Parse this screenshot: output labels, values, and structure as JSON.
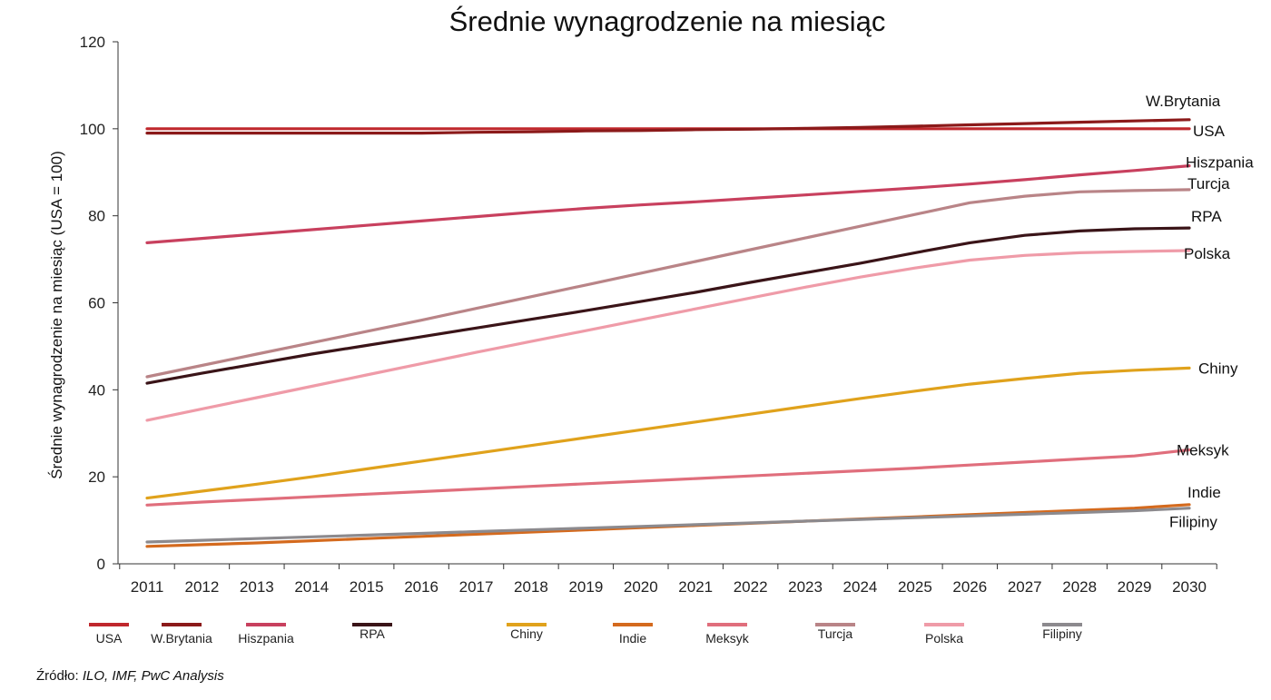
{
  "chart_data": {
    "type": "line",
    "title": "Średnie wynagrodzenie na miesiąc",
    "xlabel": "",
    "ylabel": "Średnie wynagrodzenie na miesiąc (USA = 100)",
    "x": [
      "2011",
      "2012",
      "2013",
      "2014",
      "2015",
      "2016",
      "2017",
      "2018",
      "2019",
      "2020",
      "2021",
      "2022",
      "2023",
      "2024",
      "2025",
      "2026",
      "2027",
      "2028",
      "2029",
      "2030"
    ],
    "ylim": [
      0,
      120
    ],
    "yticks": [
      0,
      20,
      40,
      60,
      80,
      100,
      120
    ],
    "grid": false,
    "legend_position": "bottom",
    "series": [
      {
        "name": "USA",
        "color": "#c0282d",
        "values": [
          100,
          100,
          100,
          100,
          100,
          100,
          100,
          100,
          100,
          100,
          100,
          100,
          100,
          100,
          100,
          100,
          100,
          100,
          100,
          100
        ]
      },
      {
        "name": "W.Brytania",
        "color": "#8b1a1a",
        "values": [
          99,
          99,
          99,
          99,
          99,
          99,
          99.2,
          99.3,
          99.5,
          99.6,
          99.8,
          99.9,
          100.1,
          100.3,
          100.6,
          100.9,
          101.2,
          101.5,
          101.8,
          102.1
        ]
      },
      {
        "name": "Hiszpania",
        "color": "#c8405e",
        "values": [
          73.8,
          74.8,
          75.8,
          76.8,
          77.8,
          78.8,
          79.8,
          80.8,
          81.7,
          82.5,
          83.2,
          84,
          84.8,
          85.6,
          86.4,
          87.3,
          88.3,
          89.4,
          90.4,
          91.5
        ]
      },
      {
        "name": "RPA",
        "color": "#3a1418",
        "values": [
          41.5,
          43.8,
          46,
          48.2,
          50.2,
          52.2,
          54.2,
          56.2,
          58.2,
          60.3,
          62.4,
          64.7,
          66.9,
          69.1,
          71.5,
          73.8,
          75.5,
          76.5,
          77,
          77.2
        ]
      },
      {
        "name": "Chiny",
        "color": "#e0a21c",
        "values": [
          15.1,
          16.7,
          18.3,
          20,
          21.8,
          23.6,
          25.4,
          27.2,
          29,
          30.8,
          32.6,
          34.4,
          36.2,
          38,
          39.7,
          41.3,
          42.6,
          43.8,
          44.5,
          45
        ]
      },
      {
        "name": "Indie",
        "color": "#d46a1e",
        "values": [
          4,
          4.4,
          4.8,
          5.3,
          5.8,
          6.3,
          6.8,
          7.3,
          7.8,
          8.3,
          8.8,
          9.3,
          9.8,
          10.3,
          10.8,
          11.3,
          11.8,
          12.3,
          12.8,
          13.6
        ]
      },
      {
        "name": "Meksyk",
        "color": "#e06e7c",
        "values": [
          13.5,
          14.2,
          14.8,
          15.4,
          16,
          16.6,
          17.2,
          17.8,
          18.4,
          19,
          19.6,
          20.2,
          20.8,
          21.4,
          22,
          22.7,
          23.4,
          24.1,
          24.8,
          26.2
        ]
      },
      {
        "name": "Turcja",
        "color": "#b98487",
        "values": [
          43,
          45.6,
          48.2,
          50.8,
          53.4,
          56,
          58.7,
          61.4,
          64.1,
          66.8,
          69.5,
          72.2,
          74.9,
          77.6,
          80.3,
          83,
          84.5,
          85.5,
          85.8,
          86
        ]
      },
      {
        "name": "Polska",
        "color": "#ef9ba8",
        "values": [
          33,
          35.6,
          38.2,
          40.8,
          43.4,
          46,
          48.6,
          51.1,
          53.6,
          56.1,
          58.6,
          61.1,
          63.6,
          65.9,
          68,
          69.8,
          70.9,
          71.5,
          71.8,
          72
        ]
      },
      {
        "name": "Filipiny",
        "color": "#8c8a8e",
        "values": [
          5,
          5.4,
          5.8,
          6.2,
          6.6,
          7,
          7.4,
          7.8,
          8.2,
          8.6,
          9,
          9.4,
          9.8,
          10.2,
          10.6,
          11,
          11.4,
          11.8,
          12.2,
          12.8
        ]
      }
    ],
    "end_labels": [
      "W.Brytania",
      "USA",
      "Hiszpania",
      "Turcja",
      "RPA",
      "Polska",
      "Chiny",
      "Meksyk",
      "Indie",
      "Filipiny"
    ]
  },
  "source": {
    "prefix": "Źródło: ",
    "text": "ILO, IMF, PwC Analysis"
  }
}
